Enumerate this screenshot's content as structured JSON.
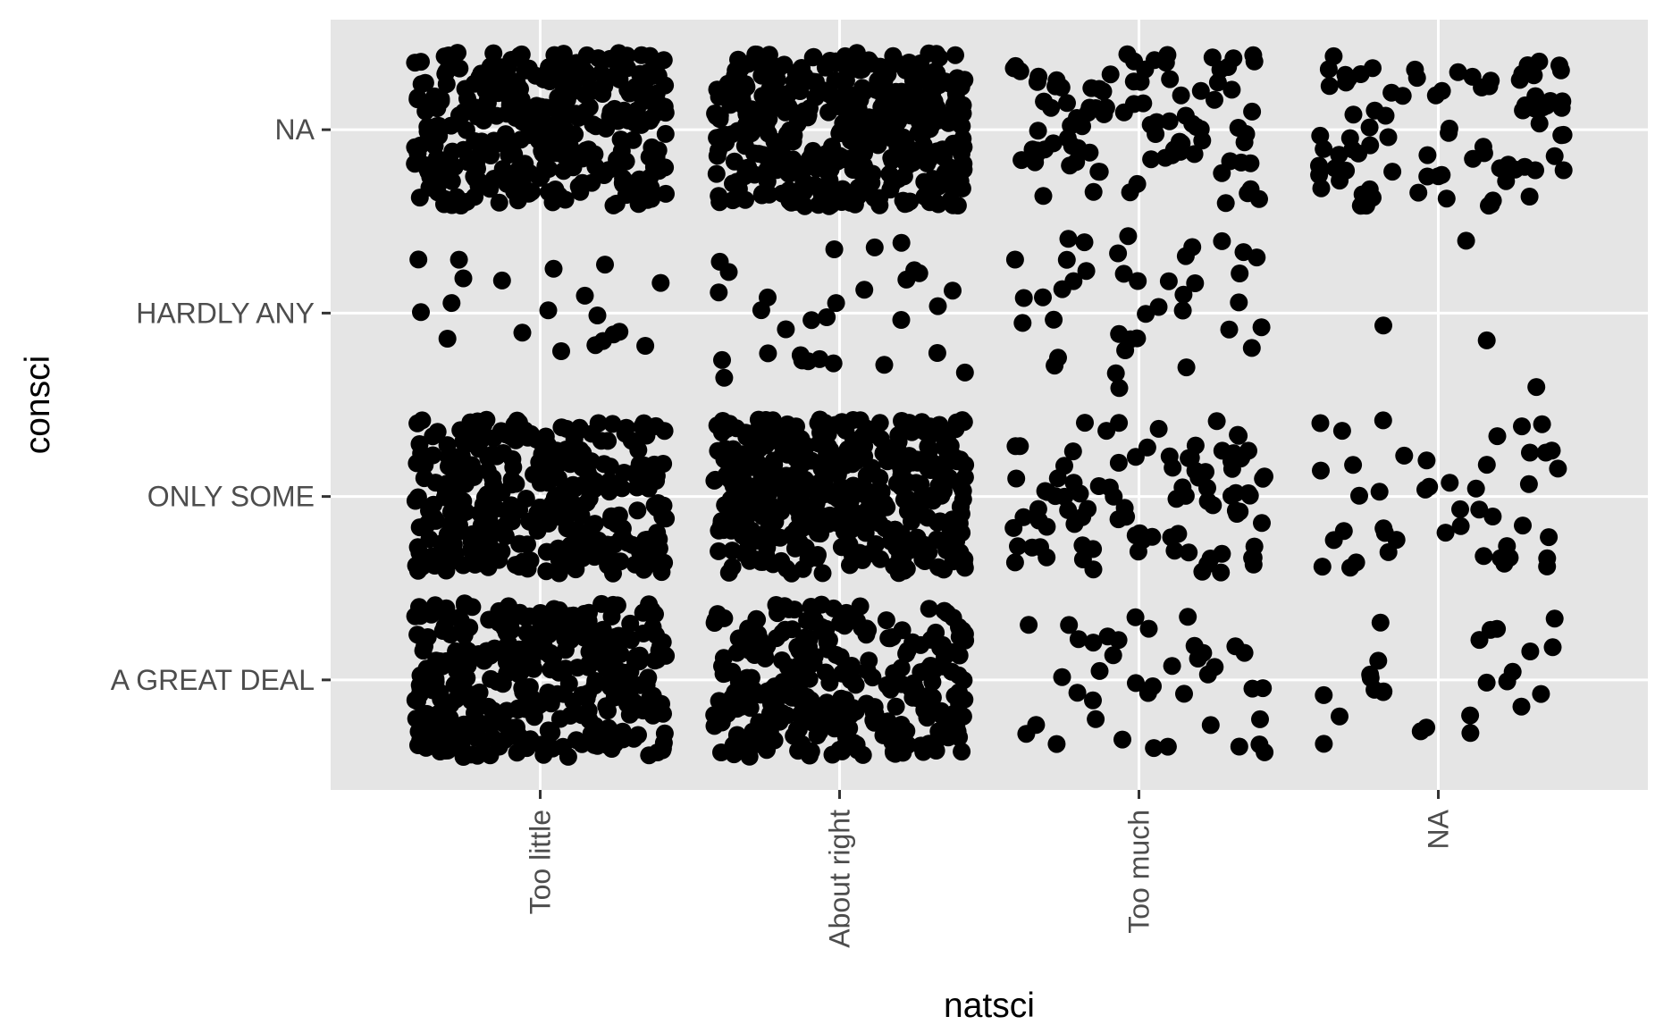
{
  "chart_data": {
    "type": "scatter",
    "jitter": true,
    "xlabel": "natsci",
    "ylabel": "consci",
    "x_categories": [
      "Too little",
      "About right",
      "Too much",
      "NA"
    ],
    "y_categories": [
      "A GREAT DEAL",
      "ONLY SOME",
      "HARDLY ANY",
      "NA"
    ],
    "grid": true,
    "legend": "none",
    "point_color": "#000000",
    "panel_color": "#e5e5e5",
    "cells": [
      {
        "x": "Too little",
        "y": "NA",
        "approx_count": 320
      },
      {
        "x": "About right",
        "y": "NA",
        "approx_count": 400
      },
      {
        "x": "Too much",
        "y": "NA",
        "approx_count": 95
      },
      {
        "x": "NA",
        "y": "NA",
        "approx_count": 85
      },
      {
        "x": "Too little",
        "y": "HARDLY ANY",
        "approx_count": 20
      },
      {
        "x": "About right",
        "y": "HARDLY ANY",
        "approx_count": 30
      },
      {
        "x": "Too much",
        "y": "HARDLY ANY",
        "approx_count": 40
      },
      {
        "x": "NA",
        "y": "HARDLY ANY",
        "approx_count": 4
      },
      {
        "x": "Too little",
        "y": "ONLY SOME",
        "approx_count": 330
      },
      {
        "x": "About right",
        "y": "ONLY SOME",
        "approx_count": 420
      },
      {
        "x": "Too much",
        "y": "ONLY SOME",
        "approx_count": 95
      },
      {
        "x": "NA",
        "y": "ONLY SOME",
        "approx_count": 45
      },
      {
        "x": "Too little",
        "y": "A GREAT DEAL",
        "approx_count": 360
      },
      {
        "x": "About right",
        "y": "A GREAT DEAL",
        "approx_count": 300
      },
      {
        "x": "Too much",
        "y": "A GREAT DEAL",
        "approx_count": 40
      },
      {
        "x": "NA",
        "y": "A GREAT DEAL",
        "approx_count": 25
      }
    ]
  }
}
